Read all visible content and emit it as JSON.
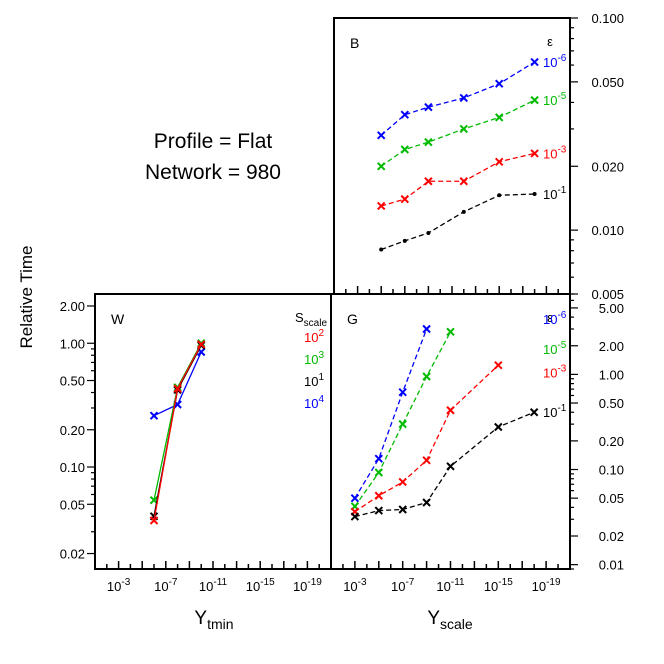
{
  "header": {
    "line1": "Profile = Flat",
    "line2": "Network = 980"
  },
  "axis_labels": {
    "ylabel": "Relative Time",
    "xlabel_left_base": "Y",
    "xlabel_left_sub": "tmin",
    "xlabel_right_base": "Y",
    "xlabel_right_sub": "scale"
  },
  "colors": {
    "blue": "#0000ff",
    "green": "#00bb00",
    "red": "#ff0000",
    "black": "#000000"
  },
  "chart_data": [
    {
      "panel": "B",
      "type": "line",
      "yscale": "log",
      "ylim": [
        0.005,
        0.1
      ],
      "xlim_exp": [
        -1,
        -21
      ],
      "yticks": [
        "0.100",
        "0.050",
        "0.020",
        "0.010",
        "0.005"
      ],
      "yticks_values": [
        0.1,
        0.05,
        0.02,
        0.01,
        0.005
      ],
      "legend_title": "ε",
      "series": [
        {
          "name": "10^-6",
          "color": "blue",
          "marker": "x",
          "x_exp": [
            -5,
            -7,
            -9,
            -12,
            -15,
            -18
          ],
          "values": [
            0.028,
            0.035,
            0.038,
            0.042,
            0.049,
            0.062
          ]
        },
        {
          "name": "10^-5",
          "color": "green",
          "marker": "x",
          "x_exp": [
            -5,
            -7,
            -9,
            -12,
            -15,
            -18
          ],
          "values": [
            0.02,
            0.024,
            0.026,
            0.03,
            0.034,
            0.041
          ]
        },
        {
          "name": "10^-3",
          "color": "red",
          "marker": "x",
          "x_exp": [
            -5,
            -7,
            -9,
            -12,
            -15,
            -18
          ],
          "values": [
            0.013,
            0.014,
            0.017,
            0.017,
            0.021,
            0.023
          ]
        },
        {
          "name": "10^-1",
          "color": "black",
          "marker": "dot",
          "x_exp": [
            -5,
            -7,
            -9,
            -12,
            -15,
            -18
          ],
          "values": [
            0.0081,
            0.0089,
            0.0097,
            0.0122,
            0.0146,
            0.0148
          ]
        }
      ],
      "series_label_values": [
        0.062,
        0.041,
        0.023,
        0.0148
      ],
      "series_labels": [
        {
          "base": "10",
          "exp": "-6",
          "color": "blue"
        },
        {
          "base": "10",
          "exp": "-5",
          "color": "green"
        },
        {
          "base": "10",
          "exp": "-3",
          "color": "red"
        },
        {
          "base": "10",
          "exp": "-1",
          "color": "black"
        }
      ]
    },
    {
      "panel": "W",
      "type": "line",
      "yscale": "log",
      "ylim": [
        0.015,
        2.5
      ],
      "xlim_exp": [
        -1,
        -21
      ],
      "xticks": [
        "-3",
        "-7",
        "-11",
        "-15",
        "-19"
      ],
      "yticks": [
        "2.00",
        "1.00",
        "0.50",
        "0.20",
        "0.10",
        "0.05",
        "0.02"
      ],
      "yticks_values": [
        2.0,
        1.0,
        0.5,
        0.2,
        0.1,
        0.05,
        0.02
      ],
      "legend_title": "S",
      "legend_title_sub": "scale",
      "series": [
        {
          "name": "10^4",
          "color": "blue",
          "marker": "x",
          "x_exp": [
            -6,
            -8,
            -10
          ],
          "values": [
            0.26,
            0.32,
            0.85
          ]
        },
        {
          "name": "10^3",
          "color": "green",
          "marker": "x",
          "x_exp": [
            -6,
            -8,
            -10
          ],
          "values": [
            0.054,
            0.44,
            1.0
          ]
        },
        {
          "name": "10^1",
          "color": "black",
          "marker": "x",
          "x_exp": [
            -6,
            -8,
            -10
          ],
          "values": [
            0.04,
            0.42,
            0.96
          ]
        },
        {
          "name": "10^2",
          "color": "red",
          "marker": "x",
          "x_exp": [
            -6,
            -8,
            -10
          ],
          "values": [
            0.037,
            0.43,
            0.98
          ]
        }
      ],
      "series_labels": [
        {
          "base": "10",
          "exp": "2",
          "color": "red"
        },
        {
          "base": "10",
          "exp": "3",
          "color": "green"
        },
        {
          "base": "10",
          "exp": "1",
          "color": "black"
        },
        {
          "base": "10",
          "exp": "4",
          "color": "blue"
        }
      ]
    },
    {
      "panel": "G",
      "type": "line",
      "yscale": "log",
      "ylim": [
        0.009,
        7.0
      ],
      "xlim_exp": [
        -1,
        -21
      ],
      "xticks": [
        "-3",
        "-7",
        "-11",
        "-15",
        "-19"
      ],
      "yticks": [
        "5.00",
        "2.00",
        "1.00",
        "0.50",
        "0.20",
        "0.10",
        "0.05",
        "0.02",
        "0.01"
      ],
      "yticks_values": [
        5.0,
        2.0,
        1.0,
        0.5,
        0.2,
        0.1,
        0.05,
        0.02,
        0.01
      ],
      "legend_title": "ε",
      "series": [
        {
          "name": "10^-6",
          "color": "blue",
          "marker": "x",
          "x_exp": [
            -3,
            -5,
            -7,
            -9
          ],
          "values": [
            0.05,
            0.13,
            0.65,
            3.0
          ]
        },
        {
          "name": "10^-5",
          "color": "green",
          "marker": "x",
          "x_exp": [
            -3,
            -5,
            -7,
            -9,
            -11
          ],
          "values": [
            0.041,
            0.093,
            0.3,
            0.95,
            2.8
          ]
        },
        {
          "name": "10^-3",
          "color": "red",
          "marker": "x",
          "x_exp": [
            -3,
            -5,
            -7,
            -9,
            -11,
            -15
          ],
          "values": [
            0.036,
            0.053,
            0.074,
            0.125,
            0.42,
            1.25
          ]
        },
        {
          "name": "10^-1",
          "color": "black",
          "marker": "x",
          "x_exp": [
            -3,
            -5,
            -7,
            -9,
            -11,
            -15,
            -18
          ],
          "values": [
            0.032,
            0.037,
            0.038,
            0.045,
            0.108,
            0.28,
            0.4
          ]
        }
      ],
      "series_label_values": [
        3.8,
        1.85,
        1.05,
        0.4
      ],
      "series_labels": [
        {
          "base": "10",
          "exp": "-6",
          "color": "blue"
        },
        {
          "base": "10",
          "exp": "-5",
          "color": "green"
        },
        {
          "base": "10",
          "exp": "-3",
          "color": "red"
        },
        {
          "base": "10",
          "exp": "-1",
          "color": "black"
        }
      ]
    }
  ]
}
